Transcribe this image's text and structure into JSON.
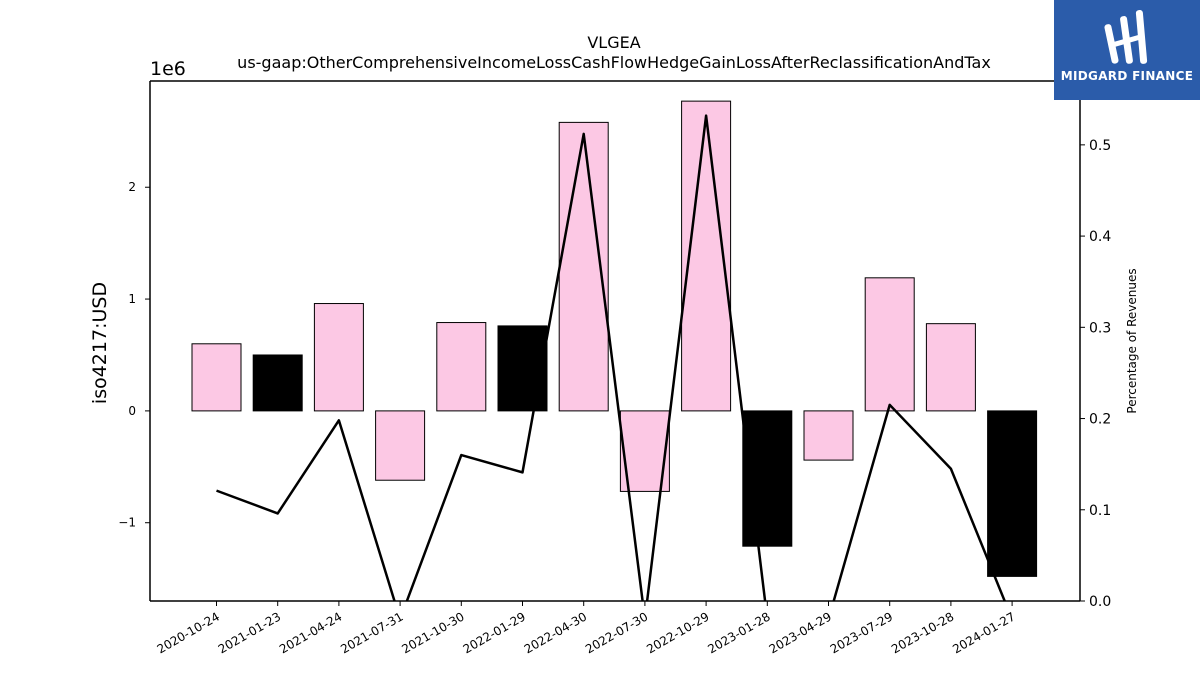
{
  "chart_data": {
    "type": "bar",
    "title": "VLGEA",
    "subtitle": "us-gaap:OtherComprehensiveIncomeLossCashFlowHedgeGainLossAfterReclassificationAndTax",
    "ylabel": "iso4217:USD",
    "y_offset_label": "1e6",
    "y2label": "Percentage of Revenues",
    "categories": [
      "2020-10-24",
      "2021-01-23",
      "2021-04-24",
      "2021-07-31",
      "2021-10-30",
      "2022-01-29",
      "2022-04-30",
      "2022-07-30",
      "2022-10-29",
      "2023-01-28",
      "2023-04-29",
      "2023-07-29",
      "2023-10-28",
      "2024-01-27"
    ],
    "values": [
      600000,
      500000,
      960000,
      -620000,
      790000,
      760000,
      2580000,
      -720000,
      2770000,
      -1210000,
      -440000,
      1190000,
      780000,
      -1480000
    ],
    "bar_colors": [
      "#fcc8e4",
      "#000000",
      "#fcc8e4",
      "#fcc8e4",
      "#fcc8e4",
      "#000000",
      "#fcc8e4",
      "#fcc8e4",
      "#fcc8e4",
      "#000000",
      "#fcc8e4",
      "#fcc8e4",
      "#fcc8e4",
      "#000000"
    ],
    "line_values": [
      0.121,
      0.096,
      0.198,
      -0.02,
      0.16,
      0.141,
      0.512,
      -0.02,
      0.532,
      -0.02,
      -0.02,
      0.215,
      0.145,
      -0.02
    ],
    "ylim": [
      -1700000,
      2950000
    ],
    "y_ticks": [
      -1000000,
      0,
      1000000,
      2000000
    ],
    "y_tick_labels": [
      "−1",
      "0",
      "1",
      "2"
    ],
    "y2lim": [
      0.0,
      0.57
    ],
    "y2_ticks": [
      0.0,
      0.1,
      0.2,
      0.3,
      0.4,
      0.5
    ],
    "y2_tick_labels": [
      "0.0",
      "0.1",
      "0.2",
      "0.3",
      "0.4",
      "0.5"
    ],
    "grid": false,
    "colors": {
      "positive_bar": "#fcc8e4",
      "dark_bar": "#000000",
      "line": "#000000"
    }
  },
  "logo": {
    "text": "MIDGARD FINANCE",
    "icon": "midgard-logo-icon",
    "color": "#2b5caa"
  }
}
